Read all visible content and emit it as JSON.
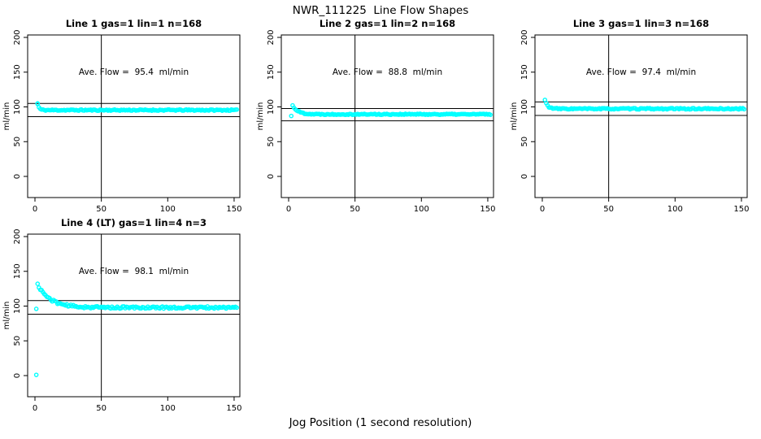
{
  "header": {
    "title": "NWR_111225  Line Flow Shapes"
  },
  "footer": {
    "xlabel": "Jog Position (1 second resolution)"
  },
  "colors": {
    "points": "#00FFFF",
    "axes": "#000000",
    "background": "#ffffff"
  },
  "chart_data": [
    {
      "type": "scatter",
      "title": "Line 1 gas=1 lin=1 n=168",
      "annotation": "Ave. Flow =  95.4  ml/min",
      "avg_flow": 95.4,
      "n": 168,
      "xlabel": "Jog Position (1 second resolution)",
      "ylabel": "ml/min",
      "xlim": [
        -5.5,
        154.3
      ],
      "ylim": [
        -32,
        204
      ],
      "xticks": [
        0,
        50,
        100,
        150
      ],
      "yticks": [
        0,
        50,
        100,
        150,
        200
      ],
      "ref_hlines": [
        104.9,
        85.9
      ],
      "ref_vline": 50,
      "point_color": "#00FFFF",
      "series_model": {
        "x_start": 2,
        "x_end": 152,
        "start": 105,
        "settle": 95.4,
        "tau": 1.1,
        "noise": 0.9,
        "seed": 11
      },
      "special_points": [
        [
          2,
          104
        ]
      ],
      "sample_points": [
        [
          2,
          105
        ],
        [
          3,
          98
        ],
        [
          4,
          96
        ],
        [
          5,
          95.5
        ],
        [
          10,
          95.4
        ],
        [
          20,
          95.3
        ],
        [
          30,
          95.4
        ],
        [
          40,
          95.5
        ],
        [
          50,
          95.4
        ],
        [
          60,
          95.3
        ],
        [
          70,
          95.4
        ],
        [
          80,
          95.5
        ],
        [
          90,
          95.4
        ],
        [
          100,
          95.3
        ],
        [
          110,
          95.4
        ],
        [
          120,
          95.5
        ],
        [
          130,
          95.4
        ],
        [
          140,
          95.3
        ],
        [
          150,
          95.4
        ]
      ]
    },
    {
      "type": "scatter",
      "title": "Line 2 gas=1 lin=2 n=168",
      "annotation": "Ave. Flow =  88.8  ml/min",
      "avg_flow": 88.8,
      "n": 168,
      "xlabel": "Jog Position (1 second resolution)",
      "ylabel": "ml/min",
      "xlim": [
        -5.5,
        154.3
      ],
      "ylim": [
        -32,
        204
      ],
      "xticks": [
        0,
        50,
        100,
        150
      ],
      "yticks": [
        0,
        50,
        100,
        150,
        200
      ],
      "ref_hlines": [
        97.7,
        79.9
      ],
      "ref_vline": 50,
      "point_color": "#00FFFF",
      "series_model": {
        "x_start": 3,
        "x_end": 152,
        "start": 102,
        "settle": 89.4,
        "tau": 4.0,
        "noise": 0.8,
        "seed": 22
      },
      "special_points": [
        [
          2,
          87
        ]
      ],
      "sample_points": [
        [
          2,
          87
        ],
        [
          3,
          102
        ],
        [
          4,
          101
        ],
        [
          5,
          100
        ],
        [
          7,
          97
        ],
        [
          10,
          93
        ],
        [
          13,
          91
        ],
        [
          15,
          90
        ],
        [
          20,
          89.5
        ],
        [
          30,
          89.4
        ],
        [
          50,
          89.5
        ],
        [
          70,
          89.4
        ],
        [
          90,
          89.6
        ],
        [
          110,
          89.5
        ],
        [
          130,
          89.4
        ],
        [
          150,
          89.5
        ]
      ]
    },
    {
      "type": "scatter",
      "title": "Line 3 gas=1 lin=3 n=168",
      "annotation": "Ave. Flow =  97.4  ml/min",
      "avg_flow": 97.4,
      "n": 168,
      "xlabel": "Jog Position (1 second resolution)",
      "ylabel": "ml/min",
      "xlim": [
        -5.5,
        154.3
      ],
      "ylim": [
        -32,
        204
      ],
      "xticks": [
        0,
        50,
        100,
        150
      ],
      "yticks": [
        0,
        50,
        100,
        150,
        200
      ],
      "ref_hlines": [
        107.1,
        87.7
      ],
      "ref_vline": 50,
      "point_color": "#00FFFF",
      "series_model": {
        "x_start": 2,
        "x_end": 152,
        "start": 110,
        "settle": 97.3,
        "tau": 2.0,
        "noise": 0.9,
        "seed": 33
      },
      "special_points": [],
      "sample_points": [
        [
          2,
          110
        ],
        [
          3,
          108
        ],
        [
          4,
          103
        ],
        [
          5,
          100
        ],
        [
          6,
          99
        ],
        [
          8,
          97.8
        ],
        [
          10,
          97.5
        ],
        [
          20,
          97.3
        ],
        [
          30,
          97.4
        ],
        [
          50,
          97.3
        ],
        [
          70,
          97.4
        ],
        [
          90,
          97.5
        ],
        [
          110,
          97.3
        ],
        [
          130,
          97.4
        ],
        [
          150,
          97.4
        ]
      ]
    },
    {
      "type": "scatter",
      "title": "Line 4 (LT) gas=1 lin=4 n=3",
      "annotation": "Ave. Flow =  98.1  ml/min",
      "avg_flow": 98.1,
      "n": 3,
      "xlabel": "Jog Position (1 second resolution)",
      "ylabel": "ml/min",
      "xlim": [
        -5.5,
        154.3
      ],
      "ylim": [
        -32,
        204
      ],
      "xticks": [
        0,
        50,
        100,
        150
      ],
      "yticks": [
        0,
        50,
        100,
        150,
        200
      ],
      "ref_hlines": [
        107.9,
        88.3
      ],
      "ref_vline": 50,
      "point_color": "#00FFFF",
      "series_model": {
        "x_start": 2,
        "x_end": 152,
        "start": 131,
        "settle": 97.9,
        "tau": 9.5,
        "noise": 1.6,
        "seed": 44
      },
      "special_points": [
        [
          1,
          1
        ],
        [
          1,
          96
        ]
      ],
      "sample_points": [
        [
          1,
          1
        ],
        [
          1,
          96
        ],
        [
          2,
          130
        ],
        [
          4,
          127
        ],
        [
          6,
          122
        ],
        [
          8,
          118
        ],
        [
          10,
          114
        ],
        [
          12,
          111
        ],
        [
          15,
          107
        ],
        [
          18,
          104
        ],
        [
          21,
          101
        ],
        [
          24,
          99.5
        ],
        [
          27,
          98.5
        ],
        [
          30,
          98
        ],
        [
          40,
          97.8
        ],
        [
          50,
          98.5
        ],
        [
          60,
          98.2
        ],
        [
          75,
          98
        ],
        [
          90,
          97.9
        ],
        [
          105,
          98.3
        ],
        [
          120,
          98.0
        ],
        [
          135,
          98.2
        ],
        [
          150,
          97.6
        ]
      ]
    }
  ]
}
